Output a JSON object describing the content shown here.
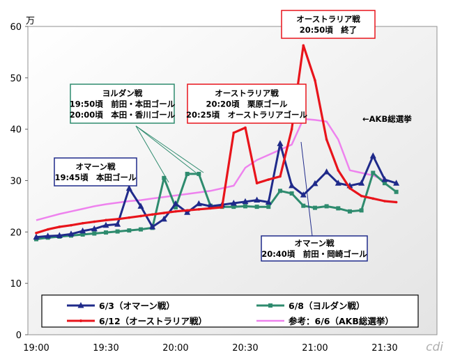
{
  "chart_data": {
    "type": "line",
    "y_unit": "万",
    "ylim": [
      0,
      60
    ],
    "yticks": [
      0,
      10,
      20,
      30,
      40,
      50,
      60
    ],
    "x_start": "19:00",
    "x_end": "21:20",
    "xticks": [
      "19:00",
      "19:30",
      "20:00",
      "20:30",
      "21:00",
      "21:30"
    ],
    "grid": false,
    "legend": "bottom",
    "x": [
      "19:00",
      "19:05",
      "19:10",
      "19:15",
      "19:20",
      "19:25",
      "19:30",
      "19:35",
      "19:40",
      "19:45",
      "19:50",
      "19:55",
      "20:00",
      "20:05",
      "20:10",
      "20:15",
      "20:20",
      "20:25",
      "20:30",
      "20:35",
      "20:40",
      "20:45",
      "20:50",
      "20:55",
      "21:00",
      "21:05",
      "21:10",
      "21:15",
      "21:20",
      "21:25",
      "21:30",
      "21:35",
      "21:40"
    ],
    "series": [
      {
        "name": "6/3（オマーン戦）",
        "color": "#1f2a8a",
        "marker": "triangle",
        "values": [
          19.0,
          19.2,
          19.3,
          19.6,
          20.2,
          20.6,
          21.3,
          21.5,
          28.5,
          25.0,
          21.0,
          22.5,
          25.5,
          23.8,
          25.5,
          25.0,
          25.3,
          25.6,
          25.9,
          26.2,
          25.8,
          37.2,
          29.0,
          27.2,
          29.4,
          31.7,
          29.5,
          29.0,
          29.5,
          34.8,
          30.2,
          29.5,
          null
        ]
      },
      {
        "name": "6/8（ヨルダン戦）",
        "color": "#2e8b6e",
        "marker": "square",
        "values": [
          18.6,
          18.9,
          19.1,
          19.3,
          19.5,
          19.7,
          19.9,
          20.1,
          20.3,
          20.5,
          20.8,
          30.5,
          24.8,
          31.3,
          31.3,
          25.1,
          24.9,
          24.9,
          25.0,
          24.9,
          24.9,
          28.0,
          27.5,
          25.1,
          24.7,
          25.0,
          24.6,
          24.0,
          24.2,
          31.5,
          29.5,
          27.8,
          null
        ]
      },
      {
        "name": "6/12（オーストラリア戦）",
        "color": "#e8141b",
        "marker": "dot",
        "values": [
          19.8,
          20.5,
          21.0,
          21.3,
          21.7,
          22.0,
          22.3,
          22.5,
          22.8,
          23.1,
          23.4,
          23.7,
          24.0,
          24.2,
          24.4,
          24.6,
          24.8,
          39.3,
          40.3,
          29.5,
          30.2,
          30.8,
          40.0,
          56.3,
          49.5,
          38.0,
          32.0,
          28.5,
          27.0,
          26.5,
          26.0,
          25.8,
          null
        ]
      },
      {
        "name": "参考：6/6（AKB総選挙）",
        "color": "#ee82ee",
        "marker": "none",
        "values": [
          22.3,
          22.9,
          23.5,
          24.0,
          24.5,
          25.0,
          25.4,
          25.7,
          26.0,
          26.2,
          26.5,
          26.8,
          27.1,
          27.4,
          27.7,
          28.0,
          28.5,
          29.0,
          32.5,
          34.0,
          35.0,
          36.0,
          37.0,
          42.0,
          41.8,
          41.5,
          38.0,
          32.0,
          31.5,
          31.0,
          30.0,
          null,
          null
        ]
      }
    ],
    "annotations": [
      {
        "lines": [
          "オマーン戦",
          "19:45頃　本田ゴール"
        ],
        "color": "#1f2a8a"
      },
      {
        "lines": [
          "ヨルダン戦",
          "19:50頃　前田・本田ゴール",
          "20:00頃　本田・香川ゴール"
        ],
        "color": "#2e8b6e"
      },
      {
        "lines": [
          "オーストラリア戦",
          "20:20頃　栗原ゴール",
          "20:25頃　オーストラリアゴール"
        ],
        "color": "#e8141b"
      },
      {
        "lines": [
          "オーストラリア戦",
          "20:50頃　終了"
        ],
        "color": "#e8141b"
      },
      {
        "lines": [
          "オマーン戦",
          "20:40頃　前田・岡崎ゴール"
        ],
        "color": "#1f2a8a"
      }
    ],
    "akb_label": "←AKB総選挙"
  }
}
